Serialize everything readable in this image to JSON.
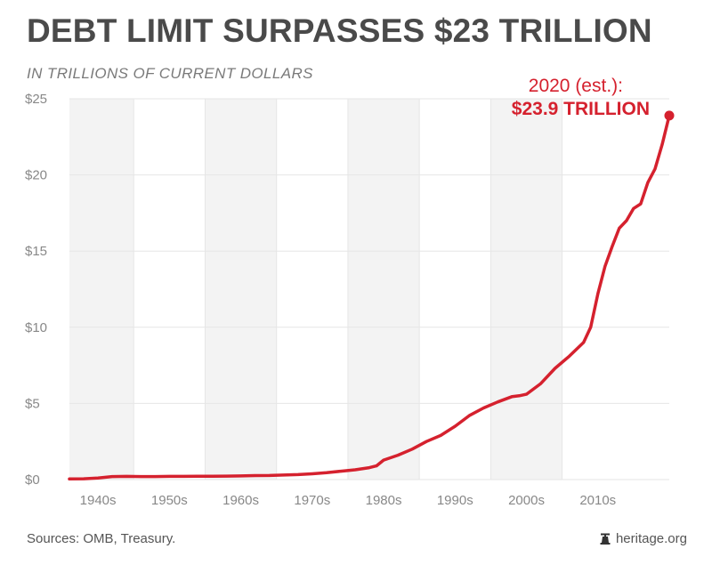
{
  "title": "DEBT LIMIT SURPASSES $23 TRILLION",
  "subtitle": "IN TRILLIONS OF CURRENT DOLLARS",
  "sources": "Sources: OMB, Treasury.",
  "brand": "heritage.org",
  "colors": {
    "line": "#d5212e",
    "band": "#f3f3f3",
    "grid": "#e6e6e6",
    "title": "#4a4a4a"
  },
  "chart_data": {
    "type": "line",
    "title": "DEBT LIMIT SURPASSES $23 TRILLION",
    "subtitle": "IN TRILLIONS OF CURRENT DOLLARS",
    "xlabel": "",
    "ylabel": "",
    "xlim": [
      1936,
      2020
    ],
    "ylim": [
      0,
      25
    ],
    "y_ticks": [
      0,
      5,
      10,
      15,
      20,
      25
    ],
    "y_tick_labels": [
      "$0",
      "$5",
      "$10",
      "$15",
      "$20",
      "$25"
    ],
    "x_tick_labels": [
      "1940s",
      "1950s",
      "1960s",
      "1970s",
      "1980s",
      "1990s",
      "2000s",
      "2010s"
    ],
    "decades": [
      1940,
      1950,
      1960,
      1970,
      1980,
      1990,
      2000,
      2010
    ],
    "grid": true,
    "annotation": {
      "line1": "2020 (est.):",
      "line2": "$23.9 TRILLION",
      "x": 2020,
      "y": 23.9
    },
    "series": [
      {
        "x": [
          1936,
          1938,
          1940,
          1942,
          1944,
          1946,
          1948,
          1950,
          1952,
          1954,
          1956,
          1958,
          1960,
          1962,
          1964,
          1966,
          1968,
          1970,
          1972,
          1974,
          1976,
          1978,
          1979,
          1980,
          1982,
          1984,
          1986,
          1988,
          1990,
          1992,
          1994,
          1996,
          1998,
          1999,
          2000,
          2002,
          2004,
          2006,
          2008,
          2009,
          2010,
          2011,
          2012,
          2013,
          2014,
          2015,
          2016,
          2017,
          2018,
          2019,
          2020
        ],
        "y": [
          0.04,
          0.05,
          0.1,
          0.2,
          0.21,
          0.2,
          0.2,
          0.21,
          0.21,
          0.22,
          0.22,
          0.23,
          0.24,
          0.26,
          0.27,
          0.3,
          0.33,
          0.38,
          0.45,
          0.55,
          0.64,
          0.78,
          0.9,
          1.28,
          1.6,
          2.0,
          2.5,
          2.9,
          3.5,
          4.2,
          4.7,
          5.1,
          5.45,
          5.5,
          5.6,
          6.3,
          7.3,
          8.1,
          9.0,
          10.0,
          12.2,
          14.0,
          15.3,
          16.5,
          17.0,
          17.8,
          18.1,
          19.5,
          20.4,
          22.0,
          23.9
        ]
      }
    ]
  }
}
